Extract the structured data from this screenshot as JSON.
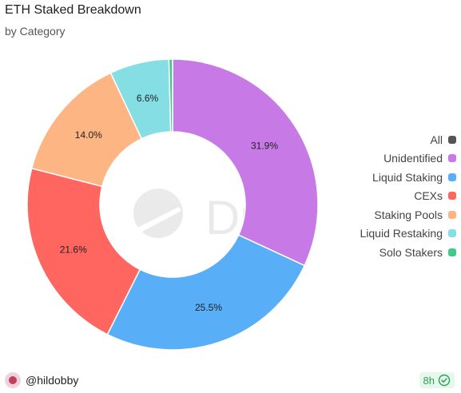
{
  "header": {
    "title": "ETH Staked Breakdown",
    "subtitle": "by Category"
  },
  "watermark": {
    "text": "Dune"
  },
  "chart_data": {
    "type": "pie",
    "style": "donut",
    "title": "ETH Staked Breakdown",
    "subtitle": "by Category",
    "series": [
      {
        "name": "Unidentified",
        "value": 31.9,
        "color": "#c77ae6",
        "label": "31.9%"
      },
      {
        "name": "Liquid Staking",
        "value": 25.5,
        "color": "#58aef7",
        "label": "25.5%"
      },
      {
        "name": "CEXs",
        "value": 21.6,
        "color": "#ff6660",
        "label": "21.6%"
      },
      {
        "name": "Staking Pools",
        "value": 14.0,
        "color": "#fdb584",
        "label": "14.0%"
      },
      {
        "name": "Liquid Restaking",
        "value": 6.6,
        "color": "#84dee3",
        "label": "6.6%"
      },
      {
        "name": "Solo Stakers",
        "value": 0.4,
        "color": "#41c98a",
        "label": ""
      }
    ],
    "legend_position": "right"
  },
  "legend": {
    "items": [
      {
        "label": "All",
        "color": "#555555"
      },
      {
        "label": "Unidentified",
        "color": "#c77ae6"
      },
      {
        "label": "Liquid Staking",
        "color": "#58aef7"
      },
      {
        "label": "CEXs",
        "color": "#ff6660"
      },
      {
        "label": "Staking Pools",
        "color": "#fdb584"
      },
      {
        "label": "Liquid Restaking",
        "color": "#84dee3"
      },
      {
        "label": "Solo Stakers",
        "color": "#41c98a"
      }
    ]
  },
  "footer": {
    "username": "@hildobby",
    "age": "8h",
    "age_icon": "verified-check-icon"
  }
}
